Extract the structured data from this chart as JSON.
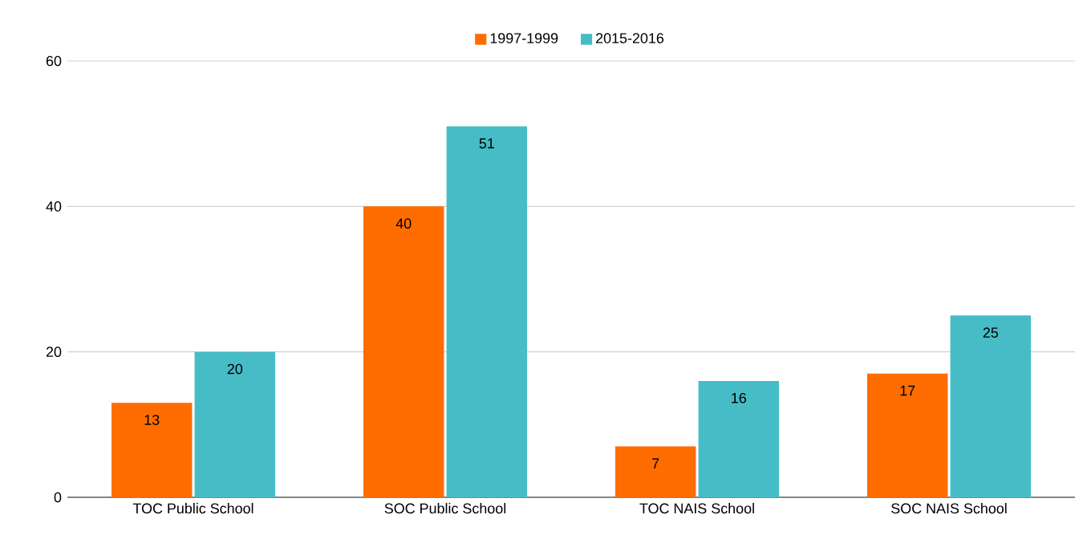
{
  "chart_data": {
    "type": "bar",
    "categories": [
      "TOC Public School",
      "SOC Public School",
      "TOC NAIS School",
      "SOC NAIS School"
    ],
    "series": [
      {
        "name": "1997-1999",
        "color": "#ff6d01",
        "values": [
          13,
          40,
          7,
          17
        ]
      },
      {
        "name": "2015-2016",
        "color": "#46bdc6",
        "values": [
          20,
          51,
          16,
          25
        ]
      }
    ],
    "ylim": [
      0,
      60
    ],
    "yticks": [
      0,
      20,
      40,
      60
    ],
    "grid": "y",
    "legend": "top",
    "data_labels": true
  }
}
